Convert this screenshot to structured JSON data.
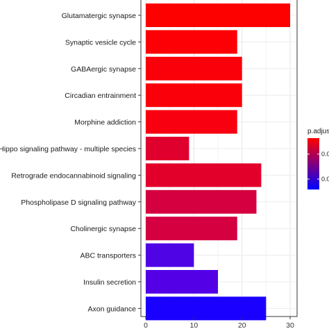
{
  "chart_data": {
    "type": "bar",
    "orientation": "horizontal",
    "categories": [
      "Glutamatergic synapse",
      "Synaptic vesicle cycle",
      "GABAergic synapse",
      "Circadian entrainment",
      "Morphine addiction",
      "Hippo signaling pathway - multiple species",
      "Retrograde endocannabinoid signaling",
      "Phospholipase D signaling pathway",
      "Cholinergic synapse",
      "ABC transporters",
      "Insulin secretion",
      "Axon guidance"
    ],
    "values": [
      30,
      19,
      20,
      20,
      19,
      9,
      24,
      23,
      19,
      10,
      15,
      25
    ],
    "bar_colors": [
      "#fd0000",
      "#fc0005",
      "#fa000a",
      "#fa000a",
      "#f8000f",
      "#e0002e",
      "#e2002b",
      "#d4003f",
      "#d4003f",
      "#4f04e6",
      "#5300e6",
      "#1a00ff"
    ],
    "xlim": [
      0,
      31
    ],
    "xticks": [
      0,
      10,
      20,
      30
    ],
    "grid": true,
    "legend": {
      "title": "p.adjust",
      "position": "right",
      "tick_labels": [
        "0.0",
        "0.0"
      ],
      "gradient": [
        "#ff0000",
        "#0000ff"
      ]
    }
  }
}
